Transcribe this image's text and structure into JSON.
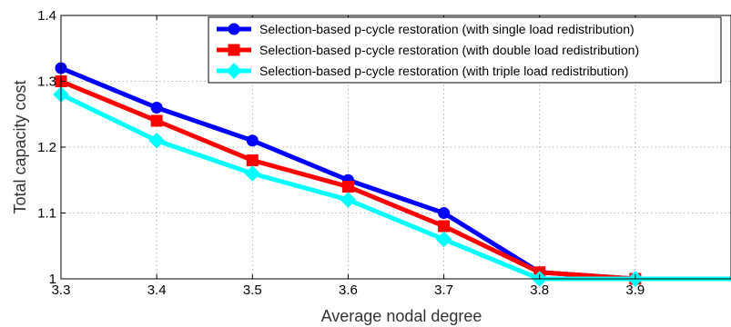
{
  "chart_data": {
    "type": "line",
    "title": "",
    "xlabel": "Average nodal degree",
    "ylabel": "Total capacity cost",
    "xlim": [
      3.3,
      4.0
    ],
    "ylim": [
      1.0,
      1.4
    ],
    "x_ticks": [
      3.3,
      3.4,
      3.5,
      3.6,
      3.7,
      3.8,
      3.9
    ],
    "x_tick_labels": [
      "3.3",
      "3.4",
      "3.5",
      "3.6",
      "3.7",
      "3.8",
      "3.9"
    ],
    "y_ticks": [
      1.0,
      1.1,
      1.2,
      1.3,
      1.4
    ],
    "y_tick_labels": [
      "1",
      "1.1",
      "1.2",
      "1.3",
      "1.4"
    ],
    "grid": true,
    "legend_position": "top-right",
    "x": [
      3.3,
      3.4,
      3.5,
      3.6,
      3.7,
      3.8,
      3.9,
      4.0
    ],
    "series": [
      {
        "name": "Selection-based p-cycle restoration (with single load redistribution)",
        "color": "#0000ff",
        "marker": "circle",
        "values": [
          1.32,
          1.26,
          1.21,
          1.15,
          1.1,
          1.01,
          1.0,
          1.0
        ]
      },
      {
        "name": "Selection-based p-cycle restoration (with double load redistribution)",
        "color": "#ff0000",
        "marker": "square",
        "values": [
          1.3,
          1.24,
          1.18,
          1.14,
          1.08,
          1.01,
          1.0,
          1.0
        ]
      },
      {
        "name": "Selection-based p-cycle restoration (with triple load redistribution)",
        "color": "#00ffff",
        "marker": "diamond",
        "values": [
          1.28,
          1.21,
          1.16,
          1.12,
          1.06,
          1.0,
          1.0,
          1.0
        ]
      }
    ]
  }
}
